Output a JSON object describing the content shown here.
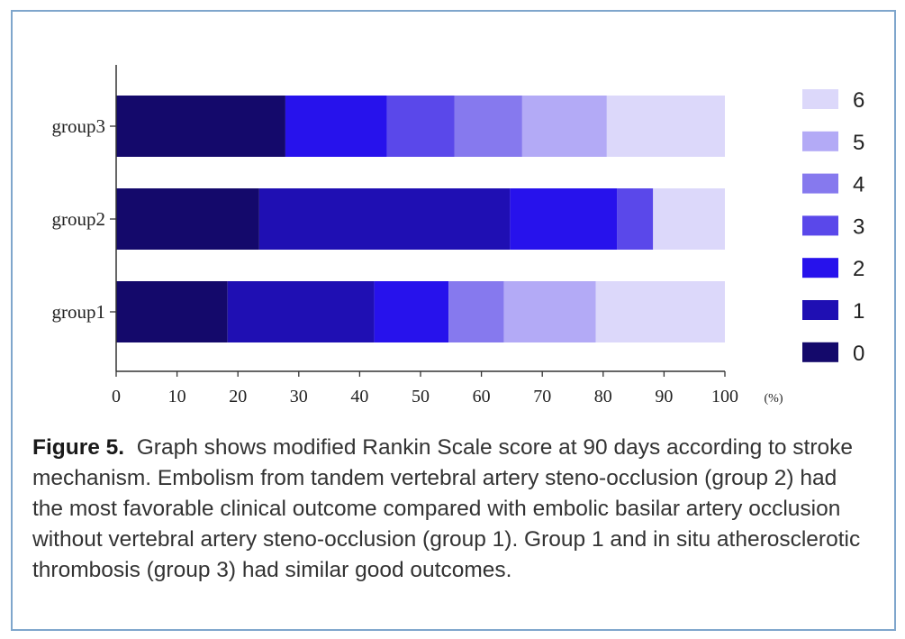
{
  "chart_data": {
    "type": "bar",
    "orientation": "horizontal",
    "stacked": true,
    "categories": [
      "group3",
      "group2",
      "group1"
    ],
    "series": [
      {
        "name": "0",
        "color": "#14096b",
        "values": [
          27.8,
          23.5,
          18.3
        ]
      },
      {
        "name": "1",
        "color": "#1f0fb3",
        "values": [
          0,
          41.2,
          24.1
        ]
      },
      {
        "name": "2",
        "color": "#2712ec",
        "values": [
          16.7,
          17.6,
          12.2
        ]
      },
      {
        "name": "3",
        "color": "#5a48ea",
        "values": [
          11.1,
          5.9,
          0
        ]
      },
      {
        "name": "4",
        "color": "#8679ee",
        "values": [
          11.1,
          0,
          9.1
        ]
      },
      {
        "name": "5",
        "color": "#b3aaf6",
        "values": [
          13.9,
          0,
          15.1
        ]
      },
      {
        "name": "6",
        "color": "#dcd8fa",
        "values": [
          19.4,
          11.8,
          21.2
        ]
      }
    ],
    "xlim": [
      0,
      100
    ],
    "xticks": [
      "0",
      "10",
      "20",
      "30",
      "40",
      "50",
      "60",
      "70",
      "80",
      "90",
      "100"
    ],
    "xunit": "(%)",
    "legend_placement": "right",
    "grid": false
  },
  "caption": {
    "label": "Figure 5.",
    "text": "Graph shows modified Rankin Scale score at 90 days according to stroke mechanism. Embolism from tandem vertebral artery steno-occlusion (group 2) had the most favorable clinical outcome compared with embolic basilar artery occlusion without vertebral artery steno-occlusion (group 1). Group 1 and in situ atherosclerotic thrombosis (group 3) had similar good outcomes."
  }
}
